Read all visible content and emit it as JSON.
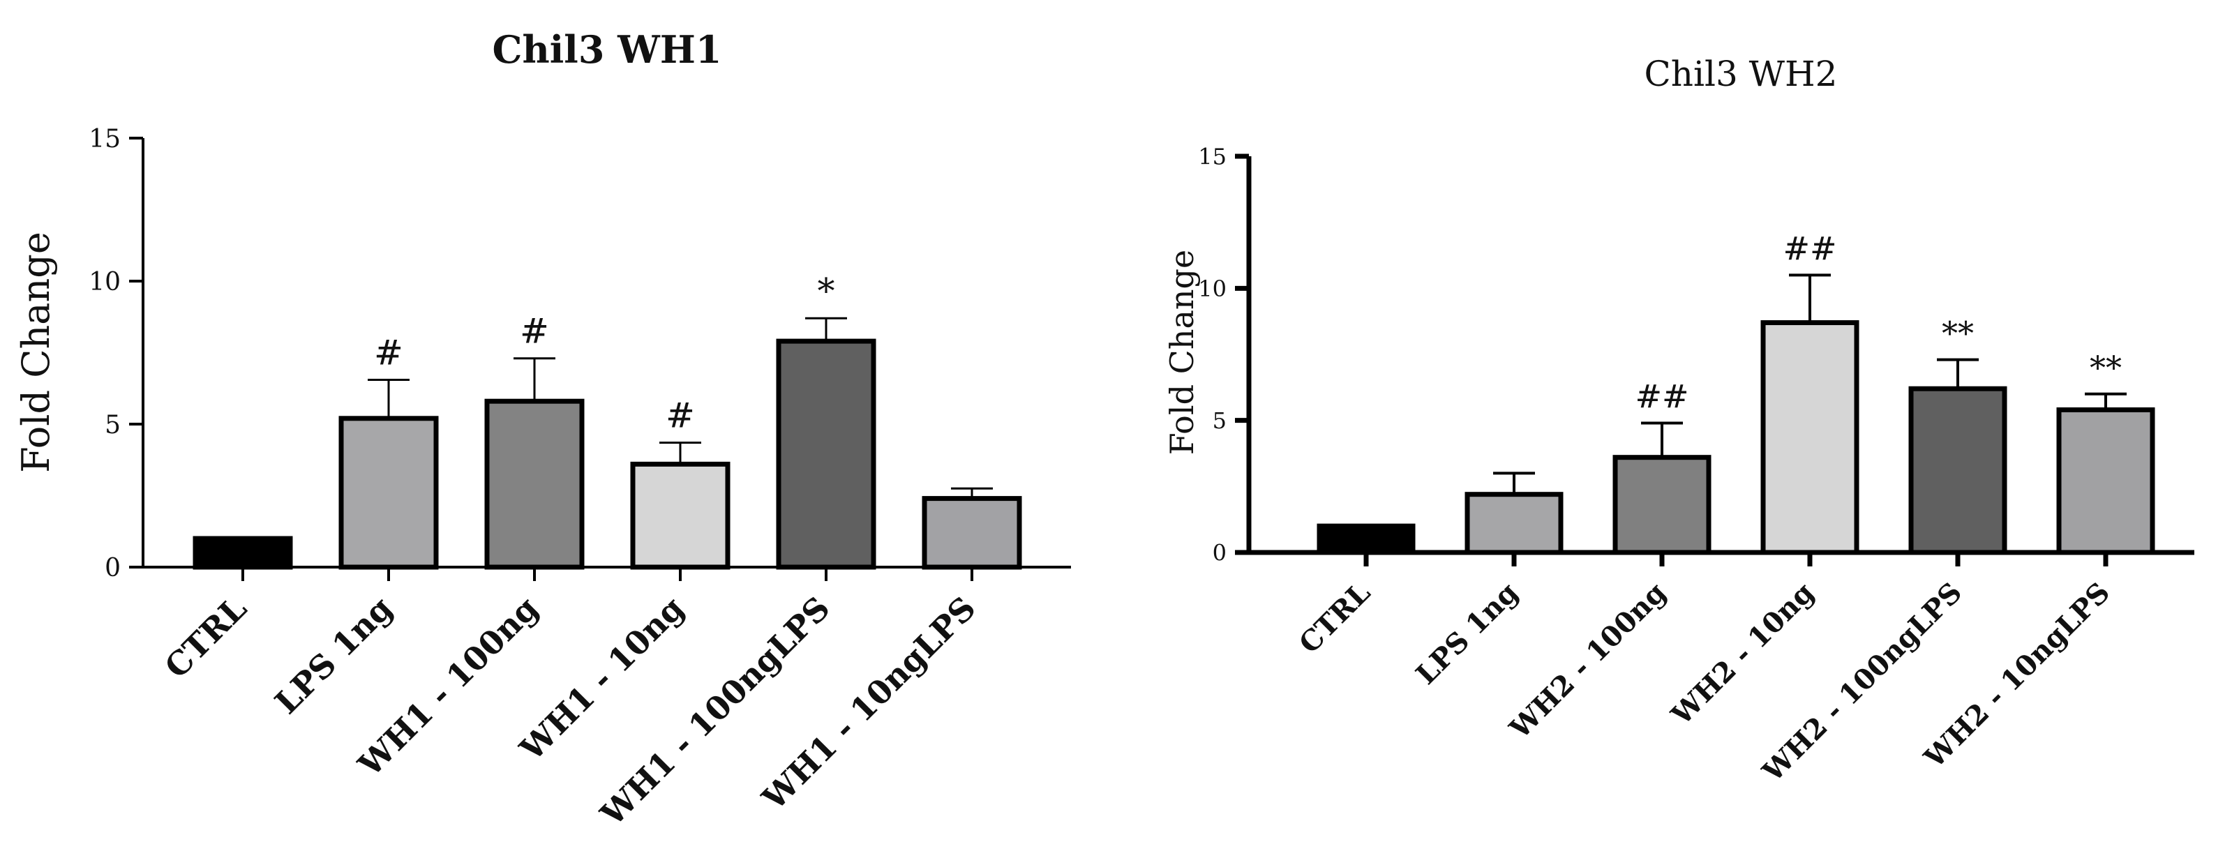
{
  "chart_data": [
    {
      "type": "bar",
      "title": "Chil3 WH1",
      "ylabel": "Fold Change",
      "ylim": [
        0,
        15
      ],
      "yticks": [
        "0",
        "5",
        "10",
        "15"
      ],
      "categories": [
        "CTRL",
        "LPS 1ng",
        "WH1 - 100ng",
        "WH1 - 10ng",
        "WH1 - 100ngLPS",
        "WH1 - 10ngLPS"
      ],
      "values": [
        1.0,
        5.2,
        5.8,
        3.6,
        7.9,
        2.4
      ],
      "errors": [
        0.0,
        1.35,
        1.5,
        0.75,
        0.8,
        0.35
      ],
      "annotations": [
        "",
        "#",
        "#",
        "#",
        "*",
        ""
      ],
      "colors": [
        "#000000",
        "#a7a7a9",
        "#838383",
        "#d6d6d6",
        "#606060",
        "#a2a2a5"
      ]
    },
    {
      "type": "bar",
      "title": "Chil3 WH2",
      "ylabel": "Fold Change",
      "ylim": [
        0,
        15
      ],
      "yticks": [
        "0",
        "5",
        "10",
        "15"
      ],
      "categories": [
        "CTRL",
        "LPS 1ng",
        "WH2 - 100ng",
        "WH2 - 10ng",
        "WH2 - 100ngLPS",
        "WH2 - 10ngLPS"
      ],
      "values": [
        1.0,
        2.2,
        3.6,
        8.7,
        6.2,
        5.4
      ],
      "errors": [
        0.0,
        0.8,
        1.3,
        1.8,
        1.1,
        0.6
      ],
      "annotations": [
        "",
        "",
        "##",
        "##",
        "**",
        "**"
      ],
      "colors": [
        "#000000",
        "#a6a6a8",
        "#808080",
        "#d6d6d6",
        "#606060",
        "#a1a1a3"
      ]
    }
  ]
}
